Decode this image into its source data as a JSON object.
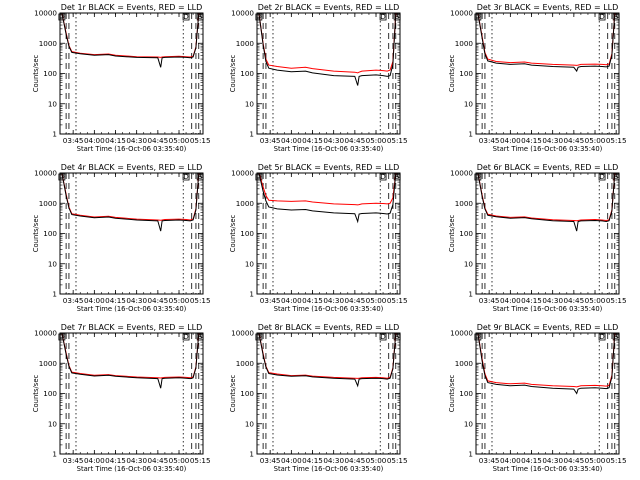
{
  "chart_data": {
    "type": "line",
    "y_scale": "log",
    "ylim": [
      1,
      10000
    ],
    "ylabel": "Counts/sec",
    "xlabel": "Start Time (16-Oct-06 03:35:40)",
    "x_ticks": [
      "03:45",
      "04:00",
      "04:15",
      "04:30",
      "04:45",
      "05:00",
      "05:15"
    ],
    "y_ticks": [
      "1",
      "10",
      "100",
      "1000",
      "10000"
    ],
    "colors": {
      "events": "#000000",
      "lld": "#ff0000"
    },
    "panels": [
      {
        "title": "Det 1r BLACK = Events, RED = LLD",
        "marker_labels": [
          "D",
          "D",
          "S"
        ],
        "series": [
          {
            "name": "Events",
            "x": [
              "03:37",
              "03:40",
              "03:42",
              "03:44",
              "03:50",
              "04:00",
              "04:10",
              "04:15",
              "04:30",
              "04:45",
              "04:47",
              "04:48",
              "04:50",
              "05:00",
              "05:05",
              "05:08",
              "05:10",
              "05:12",
              "05:14"
            ],
            "values": [
              10000,
              2000,
              800,
              500,
              450,
              400,
              420,
              380,
              340,
              330,
              160,
              330,
              340,
              350,
              340,
              330,
              350,
              700,
              10000
            ]
          },
          {
            "name": "LLD",
            "x": [
              "03:37",
              "03:40",
              "03:42",
              "03:44",
              "03:50",
              "04:00",
              "04:10",
              "04:15",
              "04:30",
              "04:45",
              "04:47",
              "04:48",
              "04:50",
              "05:00",
              "05:05",
              "05:08",
              "05:10",
              "05:12",
              "05:14"
            ],
            "values": [
              10000,
              2200,
              850,
              530,
              470,
              420,
              440,
              400,
              360,
              350,
              340,
              350,
              360,
              370,
              360,
              350,
              370,
              750,
              10000
            ]
          }
        ]
      },
      {
        "title": "Det 2r BLACK = Events, RED = LLD",
        "marker_labels": [
          "D",
          "D",
          "S"
        ],
        "series": [
          {
            "name": "Events",
            "x": [
              "03:37",
              "03:40",
              "03:42",
              "03:44",
              "03:50",
              "04:00",
              "04:10",
              "04:15",
              "04:30",
              "04:45",
              "04:47",
              "04:48",
              "04:50",
              "05:00",
              "05:05",
              "05:08",
              "05:10",
              "05:12",
              "05:14"
            ],
            "values": [
              10000,
              900,
              250,
              150,
              130,
              115,
              120,
              105,
              85,
              80,
              40,
              80,
              85,
              90,
              85,
              80,
              85,
              200,
              10000
            ]
          },
          {
            "name": "LLD",
            "x": [
              "03:37",
              "03:40",
              "03:42",
              "03:44",
              "03:50",
              "04:00",
              "04:10",
              "04:15",
              "04:30",
              "04:45",
              "04:47",
              "04:48",
              "04:50",
              "05:00",
              "05:05",
              "05:08",
              "05:10",
              "05:12",
              "05:14"
            ],
            "values": [
              10000,
              1000,
              300,
              190,
              170,
              150,
              160,
              145,
              120,
              110,
              105,
              110,
              120,
              130,
              125,
              120,
              130,
              250,
              10000
            ]
          }
        ]
      },
      {
        "title": "Det 3r BLACK = Events, RED = LLD",
        "marker_labels": [
          "D",
          "D",
          "S"
        ],
        "series": [
          {
            "name": "Events",
            "x": [
              "03:37",
              "03:40",
              "03:42",
              "03:44",
              "03:50",
              "04:00",
              "04:10",
              "04:15",
              "04:30",
              "04:45",
              "04:47",
              "04:48",
              "04:50",
              "05:00",
              "05:05",
              "05:08",
              "05:10",
              "05:12",
              "05:14"
            ],
            "values": [
              10000,
              1500,
              450,
              260,
              220,
              200,
              210,
              190,
              170,
              160,
              120,
              160,
              170,
              175,
              170,
              165,
              175,
              400,
              10000
            ]
          },
          {
            "name": "LLD",
            "x": [
              "03:37",
              "03:40",
              "03:42",
              "03:44",
              "03:50",
              "04:00",
              "04:10",
              "04:15",
              "04:30",
              "04:45",
              "04:47",
              "04:48",
              "04:50",
              "05:00",
              "05:05",
              "05:08",
              "05:10",
              "05:12",
              "05:14"
            ],
            "values": [
              10000,
              1700,
              500,
              300,
              250,
              230,
              240,
              220,
              200,
              190,
              185,
              190,
              200,
              205,
              200,
              195,
              205,
              450,
              10000
            ]
          }
        ]
      },
      {
        "title": "Det 4r BLACK = Events, RED = LLD",
        "marker_labels": [
          "D",
          "D",
          "S"
        ],
        "series": [
          {
            "name": "Events",
            "x": [
              "03:37",
              "03:40",
              "03:42",
              "03:44",
              "03:50",
              "04:00",
              "04:10",
              "04:15",
              "04:30",
              "04:45",
              "04:47",
              "04:48",
              "04:50",
              "05:00",
              "05:05",
              "05:08",
              "05:10",
              "05:12",
              "05:14"
            ],
            "values": [
              10000,
              1800,
              700,
              420,
              380,
              330,
              350,
              320,
              280,
              260,
              120,
              260,
              270,
              280,
              270,
              260,
              280,
              600,
              10000
            ]
          },
          {
            "name": "LLD",
            "x": [
              "03:37",
              "03:40",
              "03:42",
              "03:44",
              "03:50",
              "04:00",
              "04:10",
              "04:15",
              "04:30",
              "04:45",
              "04:47",
              "04:48",
              "04:50",
              "05:00",
              "05:05",
              "05:08",
              "05:10",
              "05:12",
              "05:14"
            ],
            "values": [
              10000,
              2000,
              750,
              450,
              400,
              350,
              370,
              340,
              300,
              280,
              275,
              280,
              290,
              300,
              290,
              280,
              300,
              650,
              10000
            ]
          }
        ]
      },
      {
        "title": "Det 5r BLACK = Events, RED = LLD",
        "marker_labels": [
          "D",
          "D",
          "S"
        ],
        "series": [
          {
            "name": "Events",
            "x": [
              "03:37",
              "03:40",
              "03:42",
              "03:44",
              "03:50",
              "04:00",
              "04:10",
              "04:15",
              "04:30",
              "04:45",
              "04:47",
              "04:48",
              "04:50",
              "05:00",
              "05:05",
              "05:08",
              "05:10",
              "05:12",
              "05:14"
            ],
            "values": [
              10000,
              2500,
              1200,
              750,
              650,
              600,
              620,
              560,
              480,
              450,
              250,
              440,
              460,
              480,
              460,
              440,
              470,
              900,
              10000
            ]
          },
          {
            "name": "LLD",
            "x": [
              "03:37",
              "03:40",
              "03:42",
              "03:44",
              "03:50",
              "04:00",
              "04:10",
              "04:15",
              "04:30",
              "04:45",
              "04:47",
              "04:48",
              "04:50",
              "05:00",
              "05:05",
              "05:08",
              "05:10",
              "05:12",
              "05:14"
            ],
            "values": [
              10000,
              3500,
              1800,
              1250,
              1200,
              1150,
              1200,
              1100,
              950,
              900,
              880,
              900,
              950,
              1000,
              980,
              950,
              1000,
              1500,
              10000
            ]
          }
        ]
      },
      {
        "title": "Det 6r BLACK = Events, RED = LLD",
        "marker_labels": [
          "D",
          "D",
          "S"
        ],
        "series": [
          {
            "name": "Events",
            "x": [
              "03:37",
              "03:40",
              "03:42",
              "03:44",
              "03:50",
              "04:00",
              "04:10",
              "04:15",
              "04:30",
              "04:45",
              "04:47",
              "04:48",
              "04:50",
              "05:00",
              "05:05",
              "05:08",
              "05:10",
              "05:12",
              "05:14"
            ],
            "values": [
              10000,
              1700,
              650,
              400,
              360,
              320,
              335,
              305,
              265,
              250,
              120,
              250,
              260,
              270,
              260,
              250,
              265,
              550,
              10000
            ]
          },
          {
            "name": "LLD",
            "x": [
              "03:37",
              "03:40",
              "03:42",
              "03:44",
              "03:50",
              "04:00",
              "04:10",
              "04:15",
              "04:30",
              "04:45",
              "04:47",
              "04:48",
              "04:50",
              "05:00",
              "05:05",
              "05:08",
              "05:10",
              "05:12",
              "05:14"
            ],
            "values": [
              10000,
              1900,
              700,
              430,
              380,
              340,
              355,
              325,
              285,
              270,
              265,
              270,
              280,
              290,
              280,
              270,
              285,
              600,
              10000
            ]
          }
        ]
      },
      {
        "title": "Det 7r BLACK = Events, RED = LLD",
        "marker_labels": [
          "D",
          "D",
          "S"
        ],
        "series": [
          {
            "name": "Events",
            "x": [
              "03:37",
              "03:40",
              "03:42",
              "03:44",
              "03:50",
              "04:00",
              "04:10",
              "04:15",
              "04:30",
              "04:45",
              "04:47",
              "04:48",
              "04:50",
              "05:00",
              "05:05",
              "05:08",
              "05:10",
              "05:12",
              "05:14"
            ],
            "values": [
              10000,
              2000,
              800,
              480,
              430,
              380,
              400,
              370,
              330,
              310,
              150,
              310,
              320,
              330,
              320,
              310,
              330,
              700,
              10000
            ]
          },
          {
            "name": "LLD",
            "x": [
              "03:37",
              "03:40",
              "03:42",
              "03:44",
              "03:50",
              "04:00",
              "04:10",
              "04:15",
              "04:30",
              "04:45",
              "04:47",
              "04:48",
              "04:50",
              "05:00",
              "05:05",
              "05:08",
              "05:10",
              "05:12",
              "05:14"
            ],
            "values": [
              10000,
              2200,
              850,
              510,
              460,
              400,
              420,
              390,
              350,
              330,
              325,
              330,
              340,
              350,
              340,
              330,
              350,
              750,
              10000
            ]
          }
        ]
      },
      {
        "title": "Det 8r BLACK = Events, RED = LLD",
        "marker_labels": [
          "D",
          "D",
          "S"
        ],
        "series": [
          {
            "name": "Events",
            "x": [
              "03:37",
              "03:40",
              "03:42",
              "03:44",
              "03:50",
              "04:00",
              "04:10",
              "04:15",
              "04:30",
              "04:45",
              "04:47",
              "04:48",
              "04:50",
              "05:00",
              "05:05",
              "05:08",
              "05:10",
              "05:12",
              "05:14"
            ],
            "values": [
              10000,
              1900,
              750,
              460,
              410,
              370,
              385,
              355,
              320,
              300,
              180,
              300,
              310,
              320,
              310,
              300,
              320,
              650,
              10000
            ]
          },
          {
            "name": "LLD",
            "x": [
              "03:37",
              "03:40",
              "03:42",
              "03:44",
              "03:50",
              "04:00",
              "04:10",
              "04:15",
              "04:30",
              "04:45",
              "04:47",
              "04:48",
              "04:50",
              "05:00",
              "05:05",
              "05:08",
              "05:10",
              "05:12",
              "05:14"
            ],
            "values": [
              10000,
              2100,
              800,
              490,
              440,
              390,
              405,
              375,
              340,
              320,
              315,
              320,
              330,
              340,
              330,
              320,
              340,
              700,
              10000
            ]
          }
        ]
      },
      {
        "title": "Det 9r BLACK = Events, RED = LLD",
        "marker_labels": [
          "D",
          "D",
          "S"
        ],
        "series": [
          {
            "name": "Events",
            "x": [
              "03:37",
              "03:40",
              "03:42",
              "03:44",
              "03:50",
              "04:00",
              "04:10",
              "04:15",
              "04:30",
              "04:45",
              "04:47",
              "04:48",
              "04:50",
              "05:00",
              "05:05",
              "05:08",
              "05:10",
              "05:12",
              "05:14"
            ],
            "values": [
              10000,
              1200,
              400,
              230,
              200,
              180,
              190,
              170,
              150,
              140,
              100,
              140,
              150,
              155,
              150,
              145,
              155,
              350,
              10000
            ]
          },
          {
            "name": "LLD",
            "x": [
              "03:37",
              "03:40",
              "03:42",
              "03:44",
              "03:50",
              "04:00",
              "04:10",
              "04:15",
              "04:30",
              "04:45",
              "04:47",
              "04:48",
              "04:50",
              "05:00",
              "05:05",
              "05:08",
              "05:10",
              "05:12",
              "05:14"
            ],
            "values": [
              10000,
              1400,
              450,
              260,
              230,
              210,
              220,
              200,
              180,
              170,
              165,
              170,
              180,
              185,
              180,
              175,
              185,
              400,
              10000
            ]
          }
        ]
      }
    ]
  }
}
